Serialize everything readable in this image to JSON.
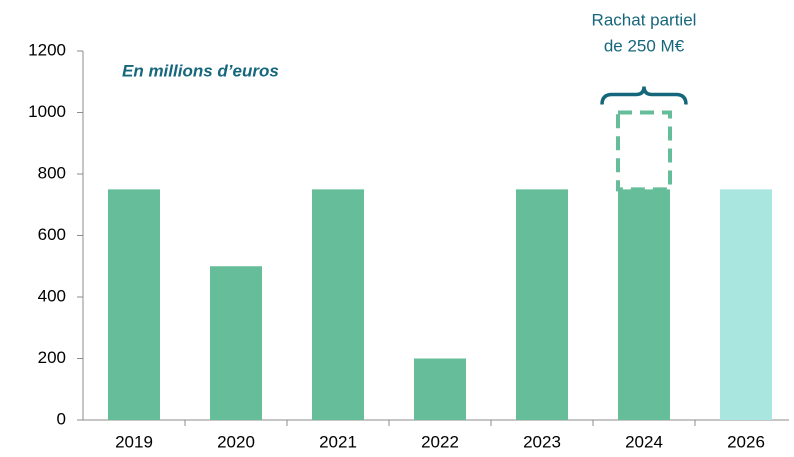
{
  "chart_data": {
    "type": "bar",
    "subtitle": "En millions d’euros",
    "categories": [
      "2019",
      "2020",
      "2021",
      "2022",
      "2023",
      "2024",
      "2026"
    ],
    "values": [
      750,
      500,
      750,
      200,
      750,
      750,
      750
    ],
    "colors": [
      "#66bd99",
      "#66bd99",
      "#66bd99",
      "#66bd99",
      "#66bd99",
      "#66bd99",
      "#a8e6df"
    ],
    "ylim": [
      0,
      1200
    ],
    "yticks": [
      0,
      200,
      400,
      600,
      800,
      1000,
      1200
    ],
    "grid": false,
    "buyback": {
      "category": "2024",
      "value": 250,
      "color": "#66bd99",
      "annotation": [
        "Rachat partiel",
        "de 250 M€"
      ]
    }
  }
}
